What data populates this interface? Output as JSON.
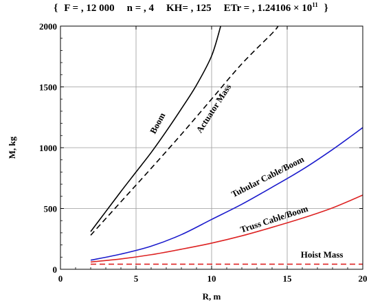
{
  "header": {
    "open_brace": "{",
    "f_part": "F = , 12 000",
    "n_part": "n = , 4",
    "kh_part": "KH= , 125",
    "etr_base": "ETr = , 1.24106 × 10",
    "etr_exp": "11",
    "close_brace": "}"
  },
  "chart_data": {
    "type": "line",
    "xlabel": "R, m",
    "ylabel": "M, kg",
    "xlim": [
      0,
      20
    ],
    "ylim": [
      0,
      2000
    ],
    "x_ticks": [
      0,
      5,
      10,
      15,
      20
    ],
    "y_ticks": [
      0,
      500,
      1000,
      1500,
      2000
    ],
    "x_tick_labels": [
      "0",
      "5",
      "10",
      "15",
      "20"
    ],
    "y_tick_labels": [
      "0",
      "500",
      "1000",
      "1500",
      "2000"
    ],
    "grid": true,
    "series": [
      {
        "name": "Boom",
        "color": "#000000",
        "dash": "solid",
        "x": [
          2,
          3,
          4,
          5,
          6,
          7,
          8,
          9,
          10,
          10.6
        ],
        "y": [
          310,
          475,
          640,
          800,
          960,
          1135,
          1320,
          1515,
          1755,
          2000
        ]
      },
      {
        "name": "Actuator Mass",
        "color": "#000000",
        "dash": "dashed",
        "x": [
          2,
          4,
          6,
          8,
          10,
          12,
          14,
          14.4
        ],
        "y": [
          280,
          555,
          830,
          1110,
          1400,
          1690,
          1940,
          2000
        ]
      },
      {
        "name": "Tubular Cable/Boom",
        "color": "#1a1acc",
        "dash": "solid",
        "x": [
          2,
          4,
          6,
          8,
          10,
          12,
          14,
          16,
          18,
          20
        ],
        "y": [
          75,
          125,
          190,
          285,
          410,
          535,
          675,
          820,
          985,
          1165
        ]
      },
      {
        "name": "Truss Cable/Boom",
        "color": "#dd2222",
        "dash": "solid",
        "x": [
          2,
          4,
          6,
          8,
          10,
          12,
          14,
          16,
          18,
          20
        ],
        "y": [
          60,
          85,
          120,
          165,
          215,
          275,
          345,
          420,
          505,
          610
        ]
      },
      {
        "name": "Hoist Mass",
        "color": "#dd2222",
        "dash": "dashed",
        "x": [
          2,
          20
        ],
        "y": [
          42,
          42
        ]
      }
    ],
    "annotations": [
      {
        "text": "Boom",
        "x": 6.6,
        "y": 1190,
        "angle": -62
      },
      {
        "text": "Actuator Mass",
        "x": 10.3,
        "y": 1310,
        "angle": -57
      },
      {
        "text": "Tubular Cable/Boom",
        "x": 13.8,
        "y": 740,
        "angle": -27
      },
      {
        "text": "Truss Cable/Boom",
        "x": 14.2,
        "y": 390,
        "angle": -18
      },
      {
        "text": "Hoist Mass",
        "x": 17.3,
        "y": 95,
        "angle": 0
      }
    ]
  }
}
